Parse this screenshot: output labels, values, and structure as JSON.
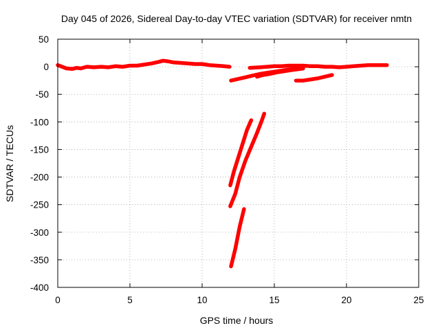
{
  "chart_data": {
    "type": "line",
    "title": "Day 045 of 2026, Sidereal Day-to-day VTEC variation (SDTVAR) for receiver nmtn",
    "xlabel": "GPS time / hours",
    "ylabel": "SDTVAR / TECUs",
    "xlim": [
      0,
      25
    ],
    "ylim": [
      -400,
      50
    ],
    "x_ticks": [
      "0",
      "5",
      "10",
      "15",
      "20",
      "25"
    ],
    "y_ticks": [
      "50",
      "0",
      "-50",
      "-100",
      "-150",
      "-200",
      "-250",
      "-300",
      "-350",
      "-400"
    ],
    "grid": true,
    "legend": "none",
    "series_color": "#ff0000",
    "series": [
      {
        "x": [
          0.0,
          0.3,
          0.6,
          1.0,
          1.3,
          1.6,
          2.0,
          2.5,
          3.0,
          3.5,
          4.0,
          4.5,
          5.0,
          5.5,
          6.0,
          6.5,
          7.0,
          7.3,
          7.6,
          8.0,
          8.5,
          9.0,
          9.5,
          10.0,
          10.5,
          11.0,
          11.5,
          11.9
        ],
        "y": [
          3,
          0,
          -3,
          -4,
          -2,
          -3,
          0,
          -1,
          0,
          -1,
          1,
          0,
          2,
          2,
          4,
          6,
          9,
          11,
          10,
          8,
          7,
          6,
          5,
          5,
          3,
          2,
          1,
          0
        ]
      },
      {
        "x": [
          12.0,
          12.5,
          13.0,
          13.5,
          14.0,
          14.5,
          15.0,
          15.5,
          16.0,
          16.5,
          17.0
        ],
        "y": [
          -25,
          -22,
          -19,
          -16,
          -13,
          -11,
          -9,
          -7,
          -5,
          -3,
          -1
        ]
      },
      {
        "x": [
          13.8,
          14.2,
          14.7,
          15.2,
          15.7,
          16.2,
          16.8,
          17.0
        ],
        "y": [
          -18,
          -15,
          -13,
          -10,
          -8,
          -6,
          -4,
          -3
        ]
      },
      {
        "x": [
          13.3,
          14.0,
          14.5,
          15.0,
          15.5,
          16.0,
          16.5,
          17.0,
          17.5,
          18.0,
          18.5,
          19.0,
          19.5,
          20.0,
          20.5,
          21.0,
          21.5,
          22.0,
          22.5,
          22.8
        ],
        "y": [
          -2,
          -1,
          0,
          1,
          1,
          2,
          2,
          2,
          1,
          1,
          0,
          0,
          -1,
          0,
          1,
          2,
          3,
          3,
          3,
          3
        ]
      },
      {
        "x": [
          16.5,
          17.0,
          17.5,
          18.0,
          18.5,
          19.0
        ],
        "y": [
          -25,
          -25,
          -23,
          -21,
          -18,
          -15
        ]
      },
      {
        "x": [
          11.95,
          12.2,
          12.5,
          12.8,
          13.1,
          13.4
        ],
        "y": [
          -215,
          -190,
          -165,
          -140,
          -115,
          -97
        ]
      },
      {
        "x": [
          11.95,
          12.3,
          12.6,
          13.0,
          13.4,
          13.8,
          14.1,
          14.3
        ],
        "y": [
          -253,
          -230,
          -200,
          -170,
          -145,
          -120,
          -100,
          -85
        ]
      },
      {
        "x": [
          12.0,
          12.3,
          12.6,
          12.9
        ],
        "y": [
          -362,
          -330,
          -290,
          -258
        ]
      }
    ]
  }
}
